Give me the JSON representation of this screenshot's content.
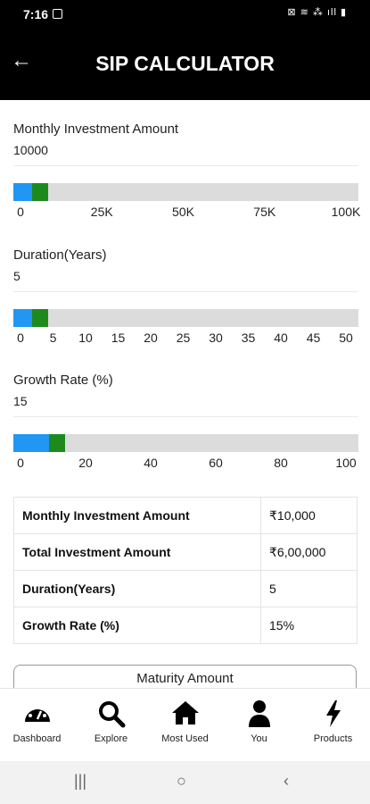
{
  "status": {
    "time": "7:16",
    "system_icons": "⊠ ≋ ⁂ ıll ▮"
  },
  "header": {
    "title": "SIP CALCULATOR",
    "back_icon": "←"
  },
  "monthly": {
    "label": "Monthly Investment Amount",
    "value": "10000",
    "slider_fraction": 0.1,
    "ticks": [
      "0",
      "25K",
      "50K",
      "75K",
      "100K"
    ]
  },
  "duration": {
    "label": "Duration(Years)",
    "value": "5",
    "slider_fraction": 0.1,
    "ticks": [
      "0",
      "5",
      "10",
      "15",
      "20",
      "25",
      "30",
      "35",
      "40",
      "45",
      "50"
    ]
  },
  "growth": {
    "label": "Growth Rate (%)",
    "value": "15",
    "slider_fraction": 0.15,
    "ticks": [
      "0",
      "20",
      "40",
      "60",
      "80",
      "100"
    ]
  },
  "summary": [
    {
      "key": "Monthly Investment Amount",
      "value": "₹10,000"
    },
    {
      "key": "Total Investment Amount",
      "value": "₹6,00,000"
    },
    {
      "key": "Duration(Years)",
      "value": "5"
    },
    {
      "key": "Growth Rate (%)",
      "value": "15%"
    }
  ],
  "maturity_label": "Maturity Amount",
  "nav": [
    {
      "label": "Dashboard",
      "icon": "dashboard-gauge-icon"
    },
    {
      "label": "Explore",
      "icon": "search-icon"
    },
    {
      "label": "Most Used",
      "icon": "home-icon"
    },
    {
      "label": "You",
      "icon": "person-icon"
    },
    {
      "label": "Products",
      "icon": "lightning-icon"
    }
  ],
  "system_nav": {
    "recents": "|||",
    "home": "○",
    "back": "‹"
  },
  "colors": {
    "slider_fill": "#2196f3",
    "slider_thumb": "#1e8a1e",
    "header_bg": "#000000"
  }
}
